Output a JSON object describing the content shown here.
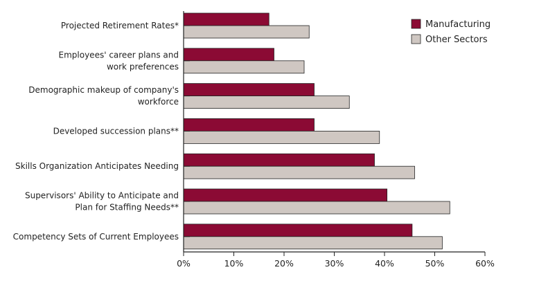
{
  "chart_data": {
    "type": "bar",
    "orientation": "horizontal",
    "categories": [
      [
        "Projected Retirement Rates*"
      ],
      [
        "Employees' career plans and",
        "work preferences"
      ],
      [
        "Demographic makeup of company's",
        "workforce"
      ],
      [
        "Developed succession plans**"
      ],
      [
        "Skills Organization Anticipates Needing"
      ],
      [
        "Supervisors' Ability to Anticipate and",
        "Plan for Staffing Needs**"
      ],
      [
        "Competency Sets of Current Employees"
      ]
    ],
    "series": [
      {
        "name": "Manufacturing",
        "color": "#8b0a34",
        "values": [
          17,
          18,
          26,
          26,
          38,
          40.5,
          45.5
        ]
      },
      {
        "name": "Other Sectors",
        "color": "#cfc7c2",
        "values": [
          25,
          24,
          33,
          39,
          46,
          53,
          51.5
        ]
      }
    ],
    "xlim": [
      0,
      60
    ],
    "xticks": [
      "0%",
      "10%",
      "20%",
      "30%",
      "40%",
      "50%",
      "60%"
    ],
    "grid": false,
    "legend": "top-right"
  }
}
